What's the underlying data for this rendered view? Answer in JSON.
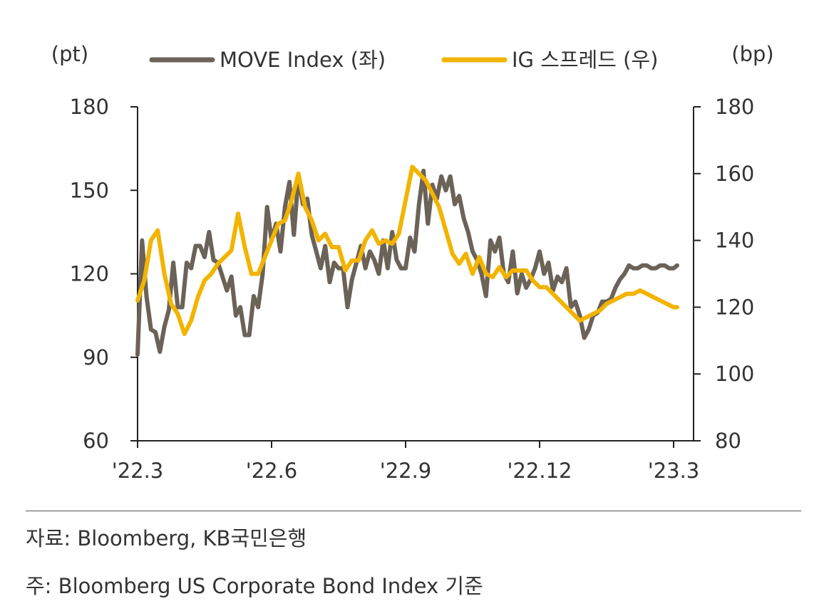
{
  "colors": {
    "move": "#6b6258",
    "ig": "#f2b400",
    "axis": "#222222",
    "text": "#333333"
  },
  "source": "자료: Bloomberg, KB국민은행",
  "footnote": "주: Bloomberg US Corporate Bond Index 기준",
  "chart_data": {
    "type": "line",
    "left_unit": "(pt)",
    "right_unit": "(bp)",
    "legend": [
      {
        "name": "MOVE Index (좌)",
        "color": "#6b6258"
      },
      {
        "name": "IG 스프레드 (우)",
        "color": "#f2b400"
      }
    ],
    "legend_position": "top",
    "grid": false,
    "x_ticks": [
      "'22.3",
      "'22.6",
      "'22.9",
      "'22.12",
      "'23.3"
    ],
    "x_tick_positions": [
      0,
      3,
      6,
      9,
      12
    ],
    "x_range": [
      0,
      12
    ],
    "y_left": {
      "min": 60,
      "max": 180,
      "ticks": [
        60,
        90,
        120,
        150,
        180
      ]
    },
    "y_right": {
      "min": 80,
      "max": 180,
      "ticks": [
        80,
        100,
        120,
        140,
        160,
        180
      ]
    },
    "series": [
      {
        "name": "MOVE Index (좌)",
        "axis": "left",
        "x": [
          0,
          0.1,
          0.2,
          0.3,
          0.4,
          0.5,
          0.6,
          0.7,
          0.8,
          0.9,
          1.0,
          1.1,
          1.2,
          1.3,
          1.4,
          1.5,
          1.6,
          1.7,
          1.8,
          1.9,
          2.0,
          2.1,
          2.2,
          2.3,
          2.4,
          2.5,
          2.6,
          2.7,
          2.8,
          2.9,
          3.0,
          3.1,
          3.2,
          3.3,
          3.4,
          3.5,
          3.6,
          3.7,
          3.8,
          3.9,
          4.0,
          4.1,
          4.2,
          4.3,
          4.4,
          4.5,
          4.6,
          4.7,
          4.8,
          4.9,
          5.0,
          5.1,
          5.2,
          5.3,
          5.4,
          5.5,
          5.6,
          5.7,
          5.8,
          5.9,
          6.0,
          6.1,
          6.2,
          6.3,
          6.4,
          6.5,
          6.6,
          6.7,
          6.8,
          6.9,
          7.0,
          7.1,
          7.2,
          7.3,
          7.4,
          7.5,
          7.6,
          7.7,
          7.8,
          7.9,
          8.0,
          8.1,
          8.2,
          8.3,
          8.4,
          8.5,
          8.6,
          8.7,
          8.8,
          8.9,
          9.0,
          9.1,
          9.2,
          9.3,
          9.4,
          9.5,
          9.6,
          9.7,
          9.8,
          9.9,
          10.0,
          10.1,
          10.2,
          10.3,
          10.4,
          10.5,
          10.6,
          10.7,
          10.8,
          10.9,
          11.0,
          11.1,
          11.2,
          11.3,
          11.4,
          11.5,
          11.6,
          11.7,
          11.8,
          11.9,
          12.0,
          12.08
        ],
        "values": [
          91,
          132,
          112,
          100,
          99,
          92,
          101,
          107,
          124,
          108,
          108,
          124,
          122,
          130,
          130,
          126,
          135,
          125,
          124,
          119,
          114,
          119,
          105,
          108,
          98,
          98,
          112,
          108,
          120,
          144,
          132,
          138,
          128,
          144,
          153,
          134,
          155,
          145,
          147,
          134,
          128,
          122,
          130,
          117,
          124,
          122,
          122,
          108,
          118,
          124,
          130,
          122,
          128,
          125,
          120,
          132,
          122,
          135,
          125,
          122,
          122,
          133,
          128,
          145,
          157,
          138,
          152,
          147,
          155,
          150,
          155,
          145,
          148,
          140,
          135,
          128,
          125,
          120,
          112,
          132,
          128,
          133,
          120,
          117,
          128,
          113,
          120,
          115,
          118,
          122,
          128,
          120,
          124,
          114,
          119,
          117,
          122,
          108,
          110,
          105,
          97,
          100,
          105,
          106,
          110,
          110,
          111,
          115,
          118,
          120,
          123,
          122,
          122,
          123,
          123,
          122,
          122,
          123,
          123,
          122,
          122,
          123
        ]
      },
      {
        "name": "IG 스프레드 (우)",
        "axis": "right",
        "x": [
          0,
          0.15,
          0.3,
          0.45,
          0.6,
          0.75,
          0.9,
          1.05,
          1.2,
          1.35,
          1.5,
          1.65,
          1.8,
          1.95,
          2.1,
          2.25,
          2.4,
          2.55,
          2.7,
          2.85,
          3.0,
          3.15,
          3.3,
          3.45,
          3.6,
          3.75,
          3.9,
          4.05,
          4.2,
          4.35,
          4.5,
          4.65,
          4.8,
          4.95,
          5.1,
          5.25,
          5.4,
          5.55,
          5.7,
          5.85,
          6.0,
          6.15,
          6.3,
          6.45,
          6.6,
          6.75,
          6.9,
          7.05,
          7.2,
          7.35,
          7.5,
          7.65,
          7.8,
          7.95,
          8.1,
          8.25,
          8.4,
          8.55,
          8.7,
          8.85,
          9.0,
          9.15,
          9.3,
          9.45,
          9.6,
          9.75,
          9.9,
          10.05,
          10.2,
          10.35,
          10.5,
          10.65,
          10.8,
          10.95,
          11.1,
          11.25,
          11.4,
          11.55,
          11.7,
          11.85,
          12.0,
          12.08
        ],
        "values": [
          122,
          128,
          140,
          143,
          130,
          121,
          118,
          112,
          116,
          123,
          128,
          130,
          133,
          135,
          137,
          148,
          138,
          130,
          130,
          135,
          140,
          145,
          146,
          152,
          160,
          150,
          146,
          140,
          142,
          138,
          138,
          131,
          134,
          134,
          140,
          143,
          139,
          140,
          139,
          142,
          152,
          162,
          160,
          158,
          154,
          150,
          143,
          136,
          133,
          136,
          130,
          135,
          130,
          129,
          132,
          129,
          131,
          131,
          131,
          128,
          126,
          126,
          124,
          122,
          120,
          118,
          116,
          117,
          118,
          119,
          121,
          122,
          123,
          124,
          124,
          125,
          124,
          123,
          122,
          121,
          120,
          120
        ]
      }
    ]
  }
}
